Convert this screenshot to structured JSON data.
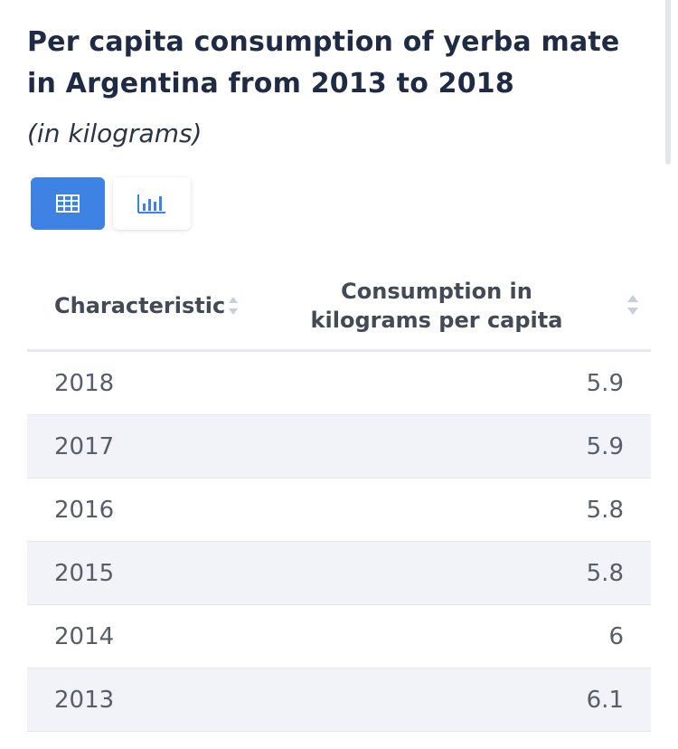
{
  "chart_data": {
    "type": "table",
    "title": "Per capita consumption of yerba mate in Argentina from 2013 to 2018",
    "subtitle": "(in kilograms)",
    "columns": [
      "Characteristic",
      "Consumption in kilograms per capita"
    ],
    "rows": [
      {
        "year": "2018",
        "value": "5.9"
      },
      {
        "year": "2017",
        "value": "5.9"
      },
      {
        "year": "2016",
        "value": "5.8"
      },
      {
        "year": "2015",
        "value": "5.8"
      },
      {
        "year": "2014",
        "value": "6"
      },
      {
        "year": "2013",
        "value": "6.1"
      }
    ],
    "x": [
      2018,
      2017,
      2016,
      2015,
      2014,
      2013
    ],
    "values": [
      5.9,
      5.9,
      5.8,
      5.8,
      6,
      6.1
    ]
  },
  "view_toggle": {
    "active": "table",
    "table_icon": "table-grid-icon",
    "chart_icon": "bar-chart-icon"
  },
  "colors": {
    "accent": "#3e82e4",
    "title": "#1f2a44",
    "stripe": "#f1f3f8"
  }
}
